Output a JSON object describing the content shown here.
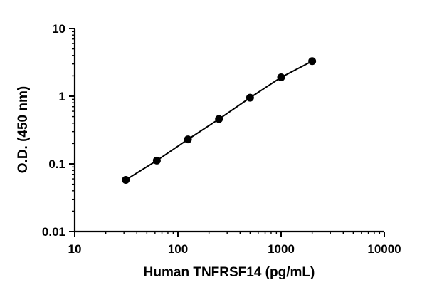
{
  "figure": {
    "background_color": "#ffffff",
    "axis_color": "#000000"
  },
  "chart_data": {
    "type": "line",
    "title": "",
    "xlabel": "Human TNFRSF14 (pg/mL)",
    "ylabel": "O.D. (450 nm)",
    "x_scale": "log10",
    "y_scale": "log10",
    "xlim": [
      10,
      10000
    ],
    "ylim": [
      0.01,
      10
    ],
    "x_major_ticks": [
      10,
      100,
      1000,
      10000
    ],
    "x_major_tick_labels": [
      "10",
      "100",
      "1000",
      "10000"
    ],
    "y_major_ticks": [
      0.01,
      0.1,
      1,
      10
    ],
    "y_major_tick_labels": [
      "0.01",
      "0.1",
      "1",
      "10"
    ],
    "grid": false,
    "legend": "none",
    "series": [
      {
        "name": "standard-curve",
        "marker": "circle",
        "marker_color": "#000000",
        "line_color": "#000000",
        "points": [
          {
            "x": 31.25,
            "y": 0.058
          },
          {
            "x": 62.5,
            "y": 0.112
          },
          {
            "x": 125,
            "y": 0.23
          },
          {
            "x": 250,
            "y": 0.46
          },
          {
            "x": 500,
            "y": 0.95
          },
          {
            "x": 1000,
            "y": 1.9
          },
          {
            "x": 2000,
            "y": 3.3
          }
        ]
      }
    ]
  }
}
